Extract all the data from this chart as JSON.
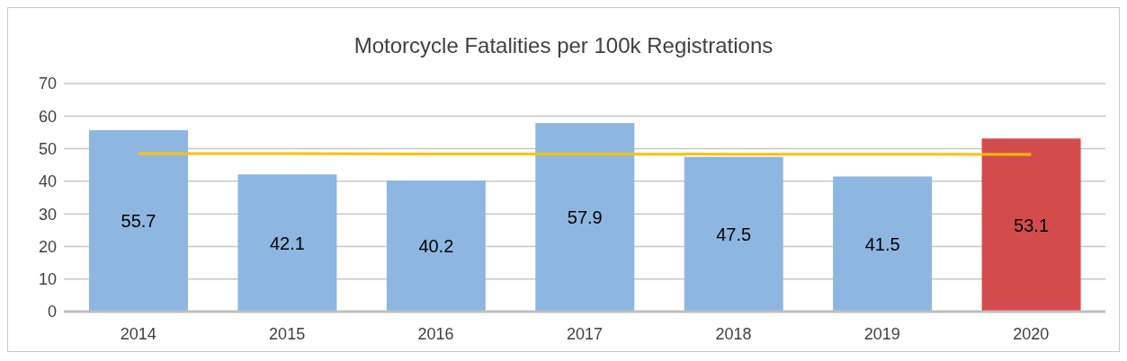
{
  "chart_data": {
    "type": "bar",
    "title": "Motorcycle Fatalities per 100k Registrations",
    "categories": [
      "2014",
      "2015",
      "2016",
      "2017",
      "2018",
      "2019",
      "2020"
    ],
    "series": [
      {
        "values": [
          55.7,
          42.1,
          40.2,
          57.9,
          47.5,
          41.5,
          53.1
        ],
        "colors": [
          "#8db7e0",
          "#8db7e0",
          "#8db7e0",
          "#8db7e0",
          "#8db7e0",
          "#8db7e0",
          "#d44b4c"
        ],
        "value_labels": [
          "55.7",
          "42.1",
          "40.2",
          "57.9",
          "47.5",
          "41.5",
          "53.1"
        ]
      },
      {
        "type": "line",
        "values": [
          48.5,
          48.5,
          48.4,
          48.4,
          48.3,
          48.3,
          48.2
        ],
        "color": "#ffc000"
      }
    ],
    "ylim": [
      0,
      70
    ],
    "yticks": [
      0,
      10,
      20,
      30,
      40,
      50,
      60,
      70
    ],
    "grid": "y",
    "legend": false
  }
}
